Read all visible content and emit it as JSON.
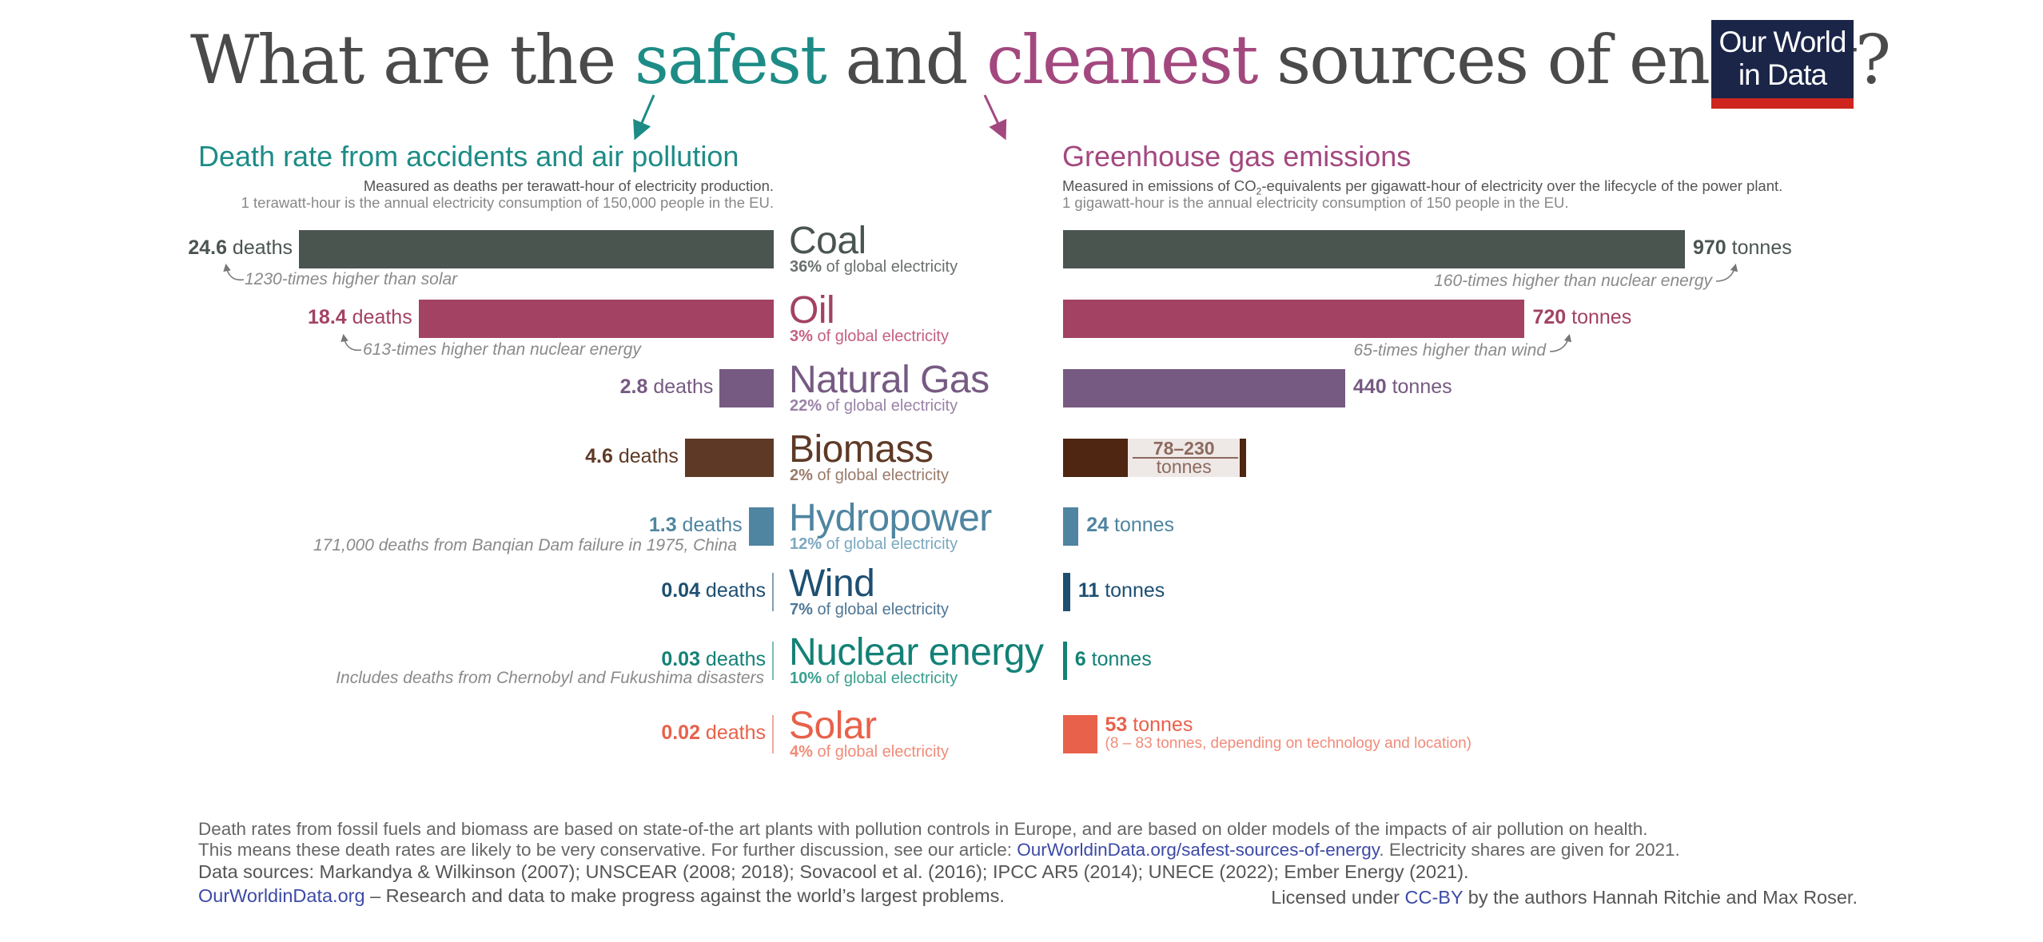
{
  "title": {
    "part1": "What are the ",
    "safest": "safest",
    "part2": " and ",
    "cleanest": "cleanest",
    "part3": " sources of energy?"
  },
  "logo": {
    "line1": "Our World",
    "line2": "in Data"
  },
  "colors": {
    "title": "#4a4a4a",
    "teal": "#1d8c86",
    "magenta": "#a3487f",
    "logo_bg": "#1a2548",
    "logo_stripe": "#ce261e",
    "link": "#3c4aa6"
  },
  "left_section": {
    "heading": "Death rate from accidents and air pollution",
    "sub1": "Measured as deaths per terawatt-hour of electricity production.",
    "sub2": "1 terawatt-hour is the annual electricity consumption of 150,000 people in the EU."
  },
  "right_section": {
    "heading": "Greenhouse gas emissions",
    "sub1_a": "Measured in emissions of CO",
    "sub1_sub": "2",
    "sub1_b": "-equivalents per gigawatt-hour of electricity over the lifecycle of the power plant.",
    "sub2": "1 gigawatt-hour is the annual electricity consumption of 150 people in the EU."
  },
  "chart_data": {
    "type": "bar",
    "title": "What are the safest and cleanest sources of energy?",
    "categories": [
      "Coal",
      "Oil",
      "Natural Gas",
      "Biomass",
      "Hydropower",
      "Wind",
      "Nuclear energy",
      "Solar"
    ],
    "series": [
      {
        "name": "Death rate from accidents and air pollution",
        "unit": "deaths per TWh",
        "direction": "left",
        "values": [
          24.6,
          18.4,
          2.8,
          4.6,
          1.3,
          0.04,
          0.03,
          0.02
        ],
        "labels": [
          "24.6",
          "18.4",
          "2.8",
          "4.6",
          "1.3",
          "0.04",
          "0.03",
          "0.02"
        ],
        "unit_label": "deaths"
      },
      {
        "name": "Greenhouse gas emissions",
        "unit": "tonnes CO2-eq per GWh",
        "direction": "right",
        "values": [
          970,
          720,
          440,
          78,
          24,
          11,
          6,
          53
        ],
        "labels": [
          "970",
          "720",
          "440",
          "78–230",
          "24",
          "11",
          "6",
          "53"
        ],
        "unit_label": "tonnes",
        "ranges": {
          "Biomass": [
            78,
            230
          ],
          "Solar": [
            8,
            83
          ]
        }
      }
    ],
    "shares": [
      "36%",
      "3%",
      "22%",
      "2%",
      "12%",
      "7%",
      "10%",
      "4%"
    ],
    "share_suffix": " of global electricity",
    "category_colors": [
      "#4a5550",
      "#a34262",
      "#765a82",
      "#5e3a26",
      "#4f85a0",
      "#1d4f72",
      "#138176",
      "#e8614a"
    ],
    "share_colors": [
      "#6a706d",
      "#c4607f",
      "#9a82a8",
      "#9a7a6a",
      "#7aa8c0",
      "#4d7696",
      "#3aa090",
      "#f08c7a"
    ],
    "bio_right_color": "#4e2612",
    "legend": "none",
    "grid": false
  },
  "annotations": {
    "coal_left": "1230-times higher than solar",
    "oil_left": "613-times higher than nuclear energy",
    "hydro_left": "171,000 deaths from Banqian Dam failure in 1975, China",
    "nuclear_left": "Includes deaths from Chernobyl and Fukushima disasters",
    "coal_right": "160-times higher than nuclear energy",
    "oil_right": "65-times higher than wind",
    "biomass_range_value": "78–230",
    "biomass_range_unit": "tonnes",
    "solar_range": "(8 – 83 tonnes, depending on technology and location)"
  },
  "footer": {
    "line1": "Death rates from fossil fuels and biomass are based on state-of-the art plants with pollution controls in Europe, and are based on older models of the impacts of air pollution on health.",
    "line2_a": "This means these death rates are likely to be very conservative. For further discussion, see our article: ",
    "line2_link": "OurWorldinData.org/safest-sources-of-energy",
    "line2_b": ". Electricity shares are given for 2021.",
    "line3": "Data sources: Markandya & Wilkinson (2007); UNSCEAR (2008; 2018); Sovacool et al. (2016); IPCC AR5 (2014); UNECE (2022); Ember Energy (2021).",
    "site_link": "OurWorldinData.org",
    "tagline": " – Research and data to make progress against the world’s largest problems.",
    "license_a": "Licensed under ",
    "license_link": "CC-BY",
    "license_b": " by the authors Hannah Ritchie and Max Roser."
  }
}
